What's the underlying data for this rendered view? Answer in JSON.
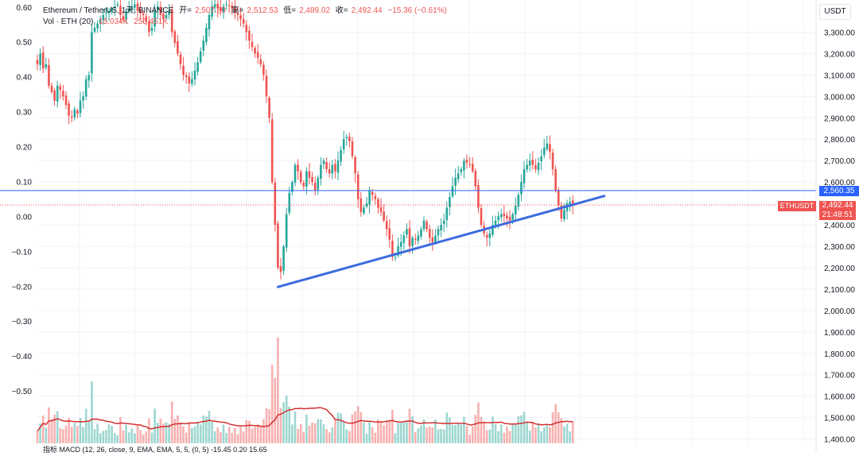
{
  "legend": {
    "symbol": "Ethereum / TetherUS, 1天, BINANCE",
    "open_label": "开=",
    "open": "2,507.80",
    "high_label": "高=",
    "high": "2,512.53",
    "low_label": "低=",
    "low": "2,489.02",
    "close_label": "收=",
    "close": "2,492.44",
    "change": "−15.36 (−0.61%)",
    "vol_label": "Vol · ETH (20)",
    "vol_value": "15.034K",
    "vol_ma": "256.451K"
  },
  "bottom_indicator": "指标 MACD (12, 26, close, 9, EMA, EMA, 5, 5, (0, 5)  -15.45  0.20  15.65",
  "currency": "USDT",
  "colors": {
    "up": "#26a69a",
    "down": "#ef5350",
    "trendline": "#3d6ce0",
    "hline": "#2962ff",
    "volma": "#d32f2f"
  },
  "chart_data": {
    "type": "candlestick",
    "title": "Ethereum / TetherUS, 1天, BINANCE",
    "right_axis": {
      "label": "USDT",
      "ylim": [
        1380,
        3450
      ],
      "ticks": [
        3300,
        3200,
        3100,
        3000,
        2900,
        2800,
        2700,
        2600,
        2500,
        2400,
        2300,
        2200,
        2100,
        2000,
        1900,
        1800,
        1700,
        1600,
        1500,
        1400
      ],
      "tick_labels": [
        "3,300.00",
        "3,200.00",
        "3,100.00",
        "3,000.00",
        "2,900.00",
        "2,800.00",
        "2,700.00",
        "2,600.00",
        "2,500.00",
        "2,400.00",
        "2,300.00",
        "2,200.00",
        "2,100.00",
        "2,000.00",
        "1,900.00",
        "1,800.00",
        "1,700.00",
        "1,600.00",
        "1,500.00",
        "1,400.00"
      ]
    },
    "left_axis": {
      "ylim": [
        -0.65,
        0.62
      ],
      "ticks": [
        0.6,
        0.5,
        0.4,
        0.3,
        0.2,
        0.1,
        0.0,
        -0.1,
        -0.2,
        -0.3,
        -0.4,
        -0.5
      ],
      "tick_labels": [
        "0.60",
        "0.50",
        "0.40",
        "0.30",
        "0.20",
        "0.10",
        "0.00",
        "−0.10",
        "−0.20",
        "−0.30",
        "−0.40",
        "−0.50"
      ]
    },
    "horizontal_line": {
      "price": 2560.35,
      "label": "2,560.35"
    },
    "last_price": {
      "symbol": "ETHUSDT",
      "price": 2492.44,
      "label": "2,492.44",
      "countdown": "21:48:51"
    },
    "trendline": {
      "start": {
        "index": 84,
        "price": 2110
      },
      "end": {
        "index": 198,
        "price": 2535
      }
    },
    "closes": [
      3150,
      3200,
      3130,
      3150,
      3050,
      3020,
      2980,
      3050,
      3030,
      3000,
      2960,
      2910,
      2900,
      2940,
      2920,
      2980,
      3000,
      3080,
      3100,
      3300,
      3320,
      3340,
      3360,
      3380,
      3390,
      3400,
      3410,
      3420,
      3430,
      3380,
      3360,
      3400,
      3410,
      3420,
      3430,
      3400,
      3390,
      3380,
      3350,
      3300,
      3320,
      3400,
      3420,
      3380,
      3360,
      3380,
      3400,
      3300,
      3250,
      3200,
      3150,
      3100,
      3090,
      3060,
      3080,
      3120,
      3160,
      3210,
      3260,
      3320,
      3380,
      3420,
      3430,
      3410,
      3400,
      3420,
      3430,
      3420,
      3410,
      3390,
      3380,
      3360,
      3340,
      3300,
      3260,
      3230,
      3200,
      3180,
      3150,
      3100,
      3000,
      2900,
      2600,
      2400,
      2200,
      2180,
      2300,
      2450,
      2550,
      2600,
      2680,
      2650,
      2600,
      2580,
      2650,
      2620,
      2600,
      2560,
      2620,
      2680,
      2700,
      2660,
      2640,
      2680,
      2650,
      2700,
      2750,
      2800,
      2810,
      2790,
      2720,
      2640,
      2520,
      2460,
      2480,
      2500,
      2560,
      2540,
      2520,
      2480,
      2460,
      2420,
      2380,
      2330,
      2250,
      2250,
      2300,
      2320,
      2350,
      2380,
      2300,
      2340,
      2330,
      2350,
      2380,
      2420,
      2380,
      2340,
      2320,
      2350,
      2380,
      2400,
      2420,
      2480,
      2530,
      2580,
      2620,
      2640,
      2660,
      2700,
      2690,
      2680,
      2650,
      2580,
      2480,
      2400,
      2360,
      2340,
      2360,
      2400,
      2420,
      2440,
      2450,
      2440,
      2430,
      2420,
      2450,
      2490,
      2540,
      2600,
      2660,
      2680,
      2700,
      2680,
      2660,
      2690,
      2720,
      2760,
      2780,
      2740,
      2660,
      2560,
      2490,
      2430,
      2470,
      2500,
      2507,
      2492
    ]
  }
}
